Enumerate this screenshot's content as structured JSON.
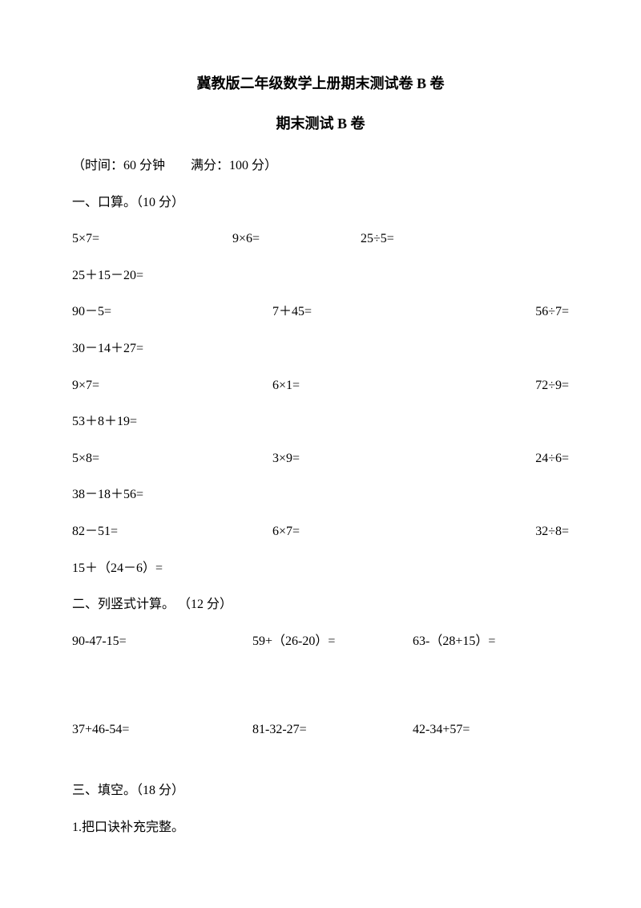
{
  "title": "冀教版二年级数学上册期末测试卷 B 卷",
  "subtitle": "期末测试 B 卷",
  "time_info": "（时间：60 分钟　　满分：100 分）",
  "section1": {
    "heading": "一、口算。（10 分）",
    "row1": {
      "a": "5×7=",
      "b": "9×6=",
      "c": "25÷5="
    },
    "row2": "25＋15－20=",
    "row3": {
      "a": "90－5=",
      "b": "7＋45=",
      "c": "56÷7="
    },
    "row4": "30－14＋27=",
    "row5": {
      "a": "9×7=",
      "b": "6×1=",
      "c": "72÷9="
    },
    "row6": "53＋8＋19=",
    "row7": {
      "a": "5×8=",
      "b": "3×9=",
      "c": "24÷6="
    },
    "row8": "38－18＋56=",
    "row9": {
      "a": "82－51=",
      "b": "6×7=",
      "c": "32÷8="
    },
    "row10": "15＋（24－6）="
  },
  "section2": {
    "heading": "二、列竖式计算。 （12 分）",
    "row1": {
      "a": "90-47-15=",
      "b": "59+（26-20）=",
      "c": "63-（28+15）="
    },
    "row2": {
      "a": "37+46-54=",
      "b": "81-32-27=",
      "c": "42-34+57="
    }
  },
  "section3": {
    "heading": "三、填空。（18 分）",
    "q1": "1.把口诀补充完整。"
  }
}
